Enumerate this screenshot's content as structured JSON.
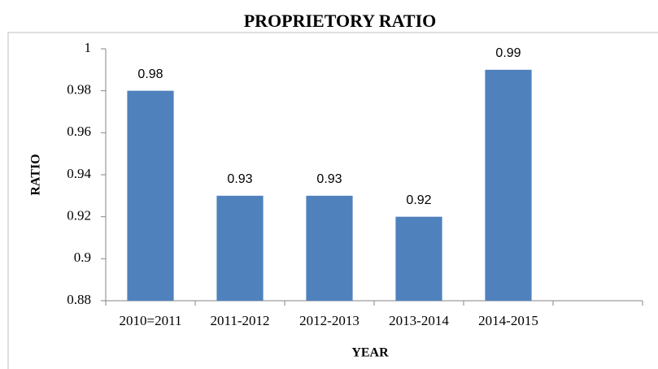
{
  "chart_data": {
    "type": "bar",
    "title": "PROPRIETORY RATIO",
    "x_label": "YEAR",
    "y_label": "RATIO",
    "categories": [
      "2010=2011",
      "2011-2012",
      "2012-2013",
      "2013-2014",
      "2014-2015",
      null
    ],
    "values": [
      0.98,
      0.93,
      0.93,
      0.92,
      0.99,
      null
    ],
    "color": "#4f81bd",
    "ylim": [
      0.88,
      1
    ],
    "yticks": [
      0.88,
      0.9,
      0.92,
      0.94,
      0.96,
      0.98,
      1
    ],
    "grid": false
  }
}
